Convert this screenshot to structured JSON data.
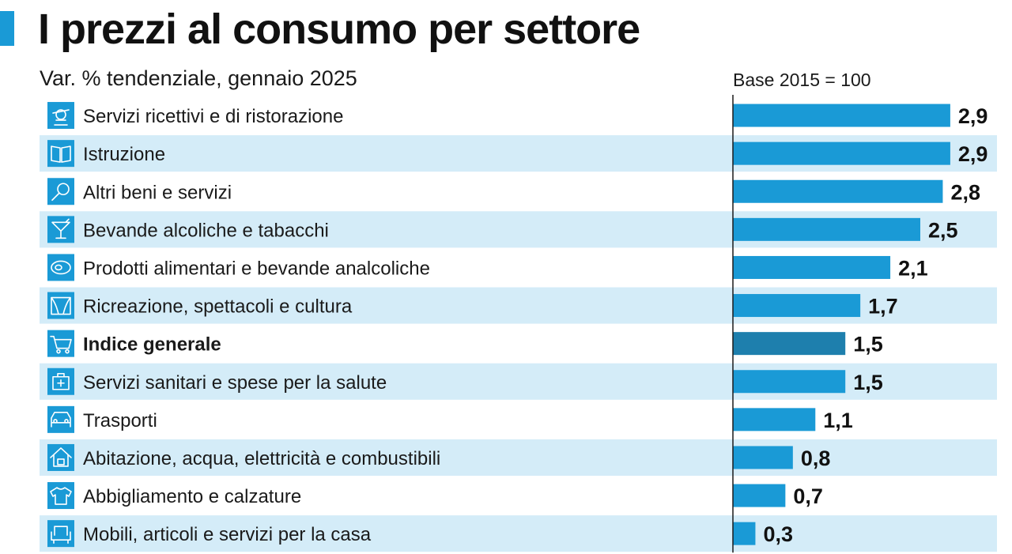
{
  "header": {
    "title": "I prezzi al consumo per settore",
    "subtitle": "Var. % tendenziale, gennaio 2025",
    "base_note": "Base 2015 = 100"
  },
  "colors": {
    "bar": "#1a9ad6",
    "bar_highlight": "#1e7fad",
    "row_band": "#d4ecf8",
    "icon": "#1a9ad6"
  },
  "chart_data": {
    "type": "bar",
    "orientation": "horizontal",
    "title": "I prezzi al consumo per settore",
    "subtitle": "Var. % tendenziale, gennaio 2025",
    "categories": [
      "Servizi ricettivi e di ristorazione",
      "Istruzione",
      "Altri beni e servizi",
      "Bevande alcoliche e tabacchi",
      "Prodotti alimentari e bevande analcoliche",
      "Ricreazione, spettacoli e cultura",
      "Indice generale",
      "Servizi sanitari e spese per la salute",
      "Trasporti",
      "Abitazione, acqua, elettricità e combustibili",
      "Abbigliamento e calzature",
      "Mobili, articoli e servizi per la casa"
    ],
    "values": [
      2.9,
      2.9,
      2.8,
      2.5,
      2.1,
      1.7,
      1.5,
      1.5,
      1.1,
      0.8,
      0.7,
      0.3
    ],
    "value_labels": [
      "2,9",
      "2,9",
      "2,8",
      "2,5",
      "2,1",
      "1,7",
      "1,5",
      "1,5",
      "1,1",
      "0,8",
      "0,7",
      "0,3"
    ],
    "icons": [
      "waiter-icon",
      "book-icon",
      "magnifier-icon",
      "cocktail-icon",
      "steak-icon",
      "theater-icon",
      "cart-icon",
      "medical-icon",
      "car-icon",
      "house-icon",
      "shirt-icon",
      "armchair-icon"
    ],
    "highlight_category": "Indice generale",
    "xlim": [
      0,
      3.0
    ],
    "grid": false,
    "legend": "none"
  }
}
